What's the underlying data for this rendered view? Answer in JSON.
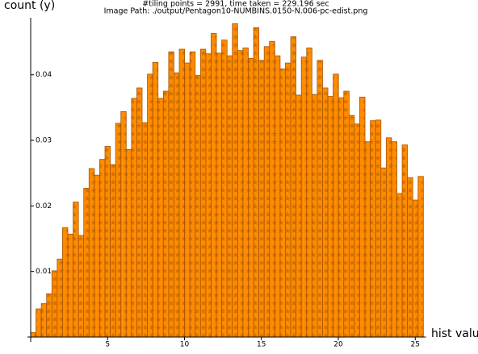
{
  "chart_data": {
    "type": "histogram",
    "title": "#tiling points = 2991, time taken = 229.196 sec",
    "subtitle": "Image Path: ./output/Pentagon10-NUMBINS.0150-N.006-pc-edist.png",
    "x_label": "hist value",
    "y_label": "count (y)",
    "color": "#ff8c00",
    "edge_color": "#a85400",
    "bins": [
      0,
      0.345,
      0.69,
      1.035,
      1.38,
      1.725,
      2.07,
      2.415,
      2.76,
      3.105,
      3.45,
      3.795,
      4.14,
      4.485,
      4.83,
      5.175,
      5.52,
      5.865,
      6.21,
      6.555,
      6.9,
      7.245,
      7.59,
      7.935,
      8.28,
      8.625,
      8.97,
      9.315,
      9.66,
      10.005,
      10.35,
      10.695,
      11.04,
      11.385,
      11.73,
      12.075,
      12.42,
      12.765,
      13.11,
      13.455,
      13.8,
      14.145,
      14.49,
      14.835,
      15.18,
      15.525,
      15.87,
      16.215,
      16.56,
      16.905,
      17.25,
      17.595,
      17.94,
      18.285,
      18.63,
      18.975,
      19.32,
      19.665,
      20.01,
      20.355,
      20.7,
      21.045,
      21.39,
      21.735,
      22.08,
      22.425,
      22.77,
      23.115,
      23.46,
      23.805,
      24.15,
      24.495,
      24.84,
      25.185,
      25.53
    ],
    "values": [
      0.0007,
      0.0043,
      0.0051,
      0.0066,
      0.0101,
      0.0119,
      0.0167,
      0.0157,
      0.0206,
      0.0155,
      0.0227,
      0.0257,
      0.0247,
      0.0271,
      0.0291,
      0.0263,
      0.0326,
      0.0344,
      0.0286,
      0.0364,
      0.038,
      0.0327,
      0.0401,
      0.0419,
      0.0364,
      0.0375,
      0.0435,
      0.0403,
      0.0439,
      0.0418,
      0.0435,
      0.0399,
      0.0439,
      0.0432,
      0.0463,
      0.0433,
      0.0453,
      0.0429,
      0.0478,
      0.0437,
      0.0441,
      0.0425,
      0.0472,
      0.0422,
      0.0443,
      0.0451,
      0.0429,
      0.0409,
      0.0418,
      0.0458,
      0.0369,
      0.0427,
      0.0441,
      0.037,
      0.0422,
      0.038,
      0.0367,
      0.0401,
      0.0365,
      0.0375,
      0.0338,
      0.0325,
      0.0366,
      0.0298,
      0.033,
      0.0331,
      0.0258,
      0.0304,
      0.0298,
      0.0219,
      0.0293,
      0.0243,
      0.0209,
      0.0245
    ],
    "xlim": [
      0,
      25.7
    ],
    "ylim": [
      0,
      0.0487
    ],
    "xticks": [
      5,
      10,
      15,
      20,
      25
    ],
    "yticks": [
      0.01,
      0.02,
      0.03,
      0.04
    ]
  }
}
